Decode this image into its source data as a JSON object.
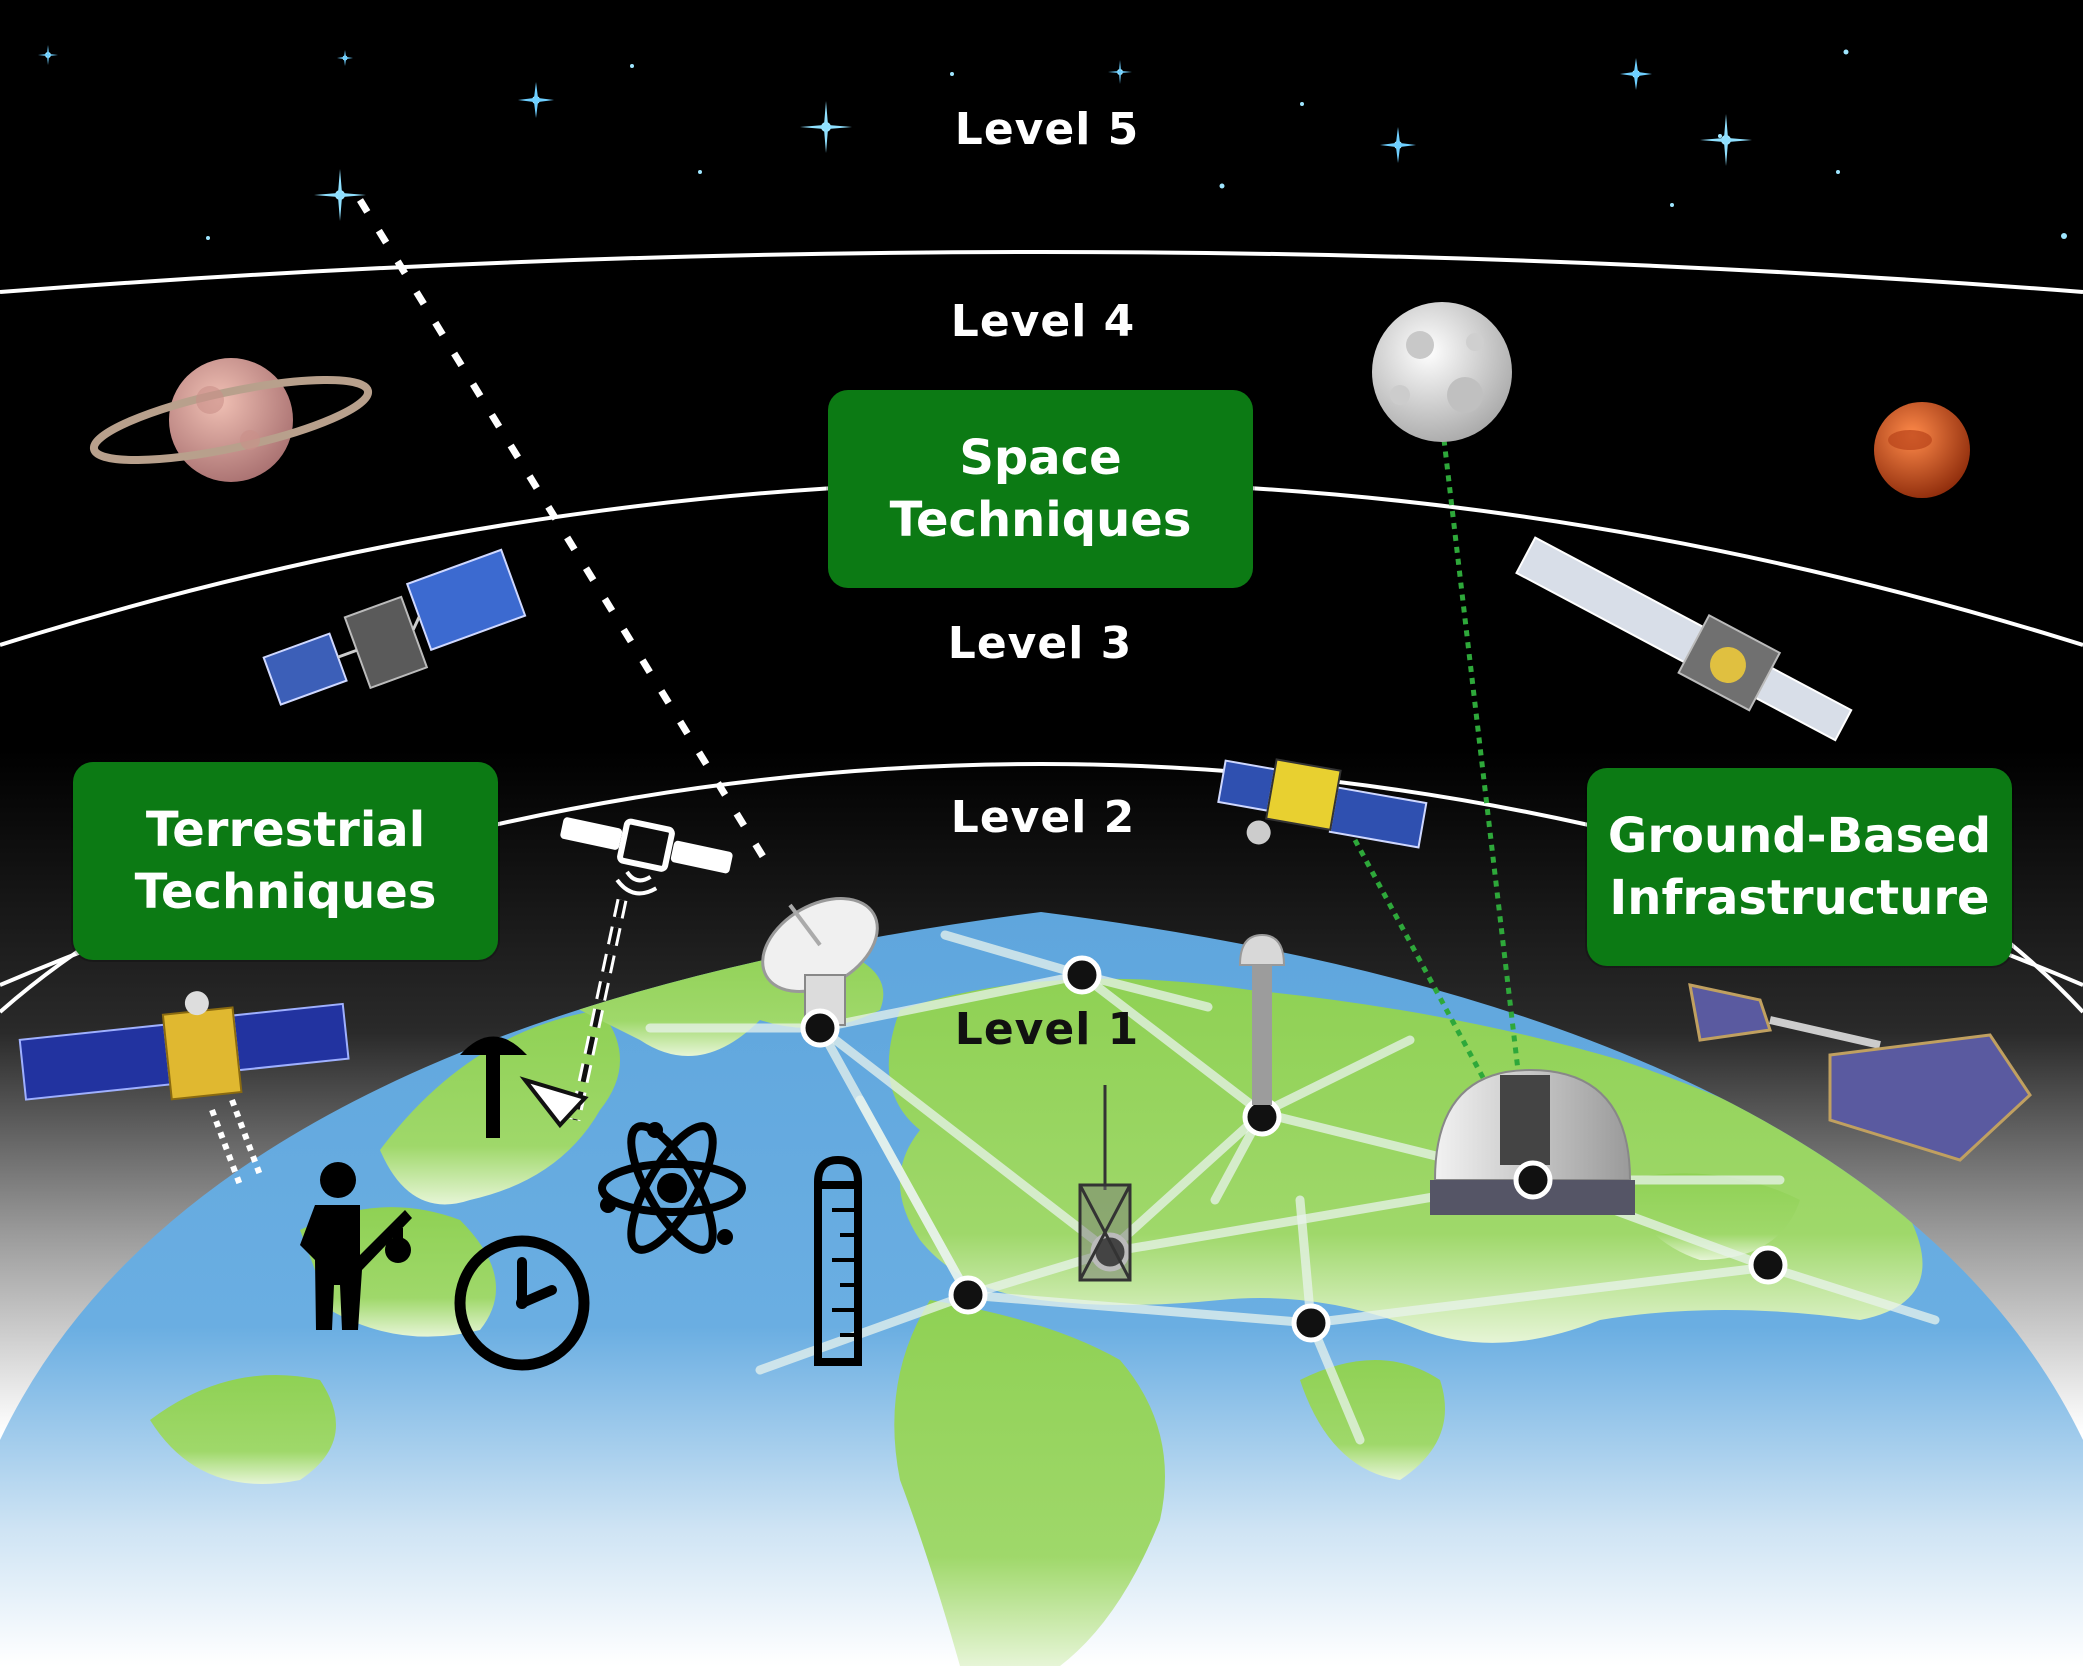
{
  "levels": [
    "Level 5",
    "Level 4",
    "Level 3",
    "Level 2",
    "Level 1"
  ],
  "boxes": {
    "space": [
      "Space",
      "Techniques"
    ],
    "terrestrial": [
      "Terrestrial",
      "Techniques"
    ],
    "ground": [
      "Ground-Based",
      "Infrastructure"
    ]
  },
  "colors": {
    "sky": "#000000",
    "box": "#0c7a14",
    "ocean": "#5fa6dd",
    "land": "#8fd154",
    "network": "#e8f3ec",
    "laser_link": "#2ea83a",
    "star": "#9fe6ff"
  },
  "icons": [
    "star-icon",
    "saturn-icon",
    "moon-icon",
    "mars-icon",
    "satellite-icon",
    "radio-telescope-icon",
    "gnss-antenna-icon",
    "observatory-dome-icon",
    "person-icon",
    "clock-icon",
    "atom-icon",
    "thermometer-icon",
    "network-node-icon"
  ]
}
